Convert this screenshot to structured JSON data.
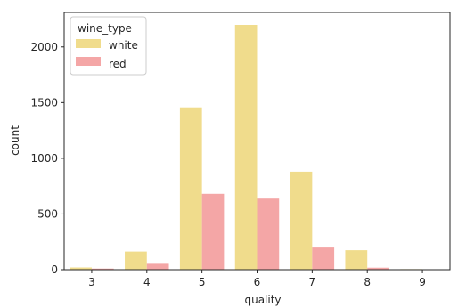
{
  "chart_data": {
    "type": "bar",
    "categories": [
      "3",
      "4",
      "5",
      "6",
      "7",
      "8",
      "9"
    ],
    "series": [
      {
        "name": "white",
        "values": [
          20,
          163,
          1457,
          2198,
          880,
          175,
          5
        ]
      },
      {
        "name": "red",
        "values": [
          10,
          53,
          681,
          638,
          199,
          18,
          0
        ]
      }
    ],
    "xlabel": "quality",
    "ylabel": "count",
    "ylim": [
      0,
      2310
    ],
    "yticks": [
      0,
      500,
      1000,
      1500,
      2000
    ],
    "legend": {
      "title": "wine_type",
      "placement": "top-left"
    },
    "grid": false,
    "colors": {
      "white": "#f0dc8c",
      "red": "#f4a6a6",
      "axis": "#262626"
    }
  }
}
